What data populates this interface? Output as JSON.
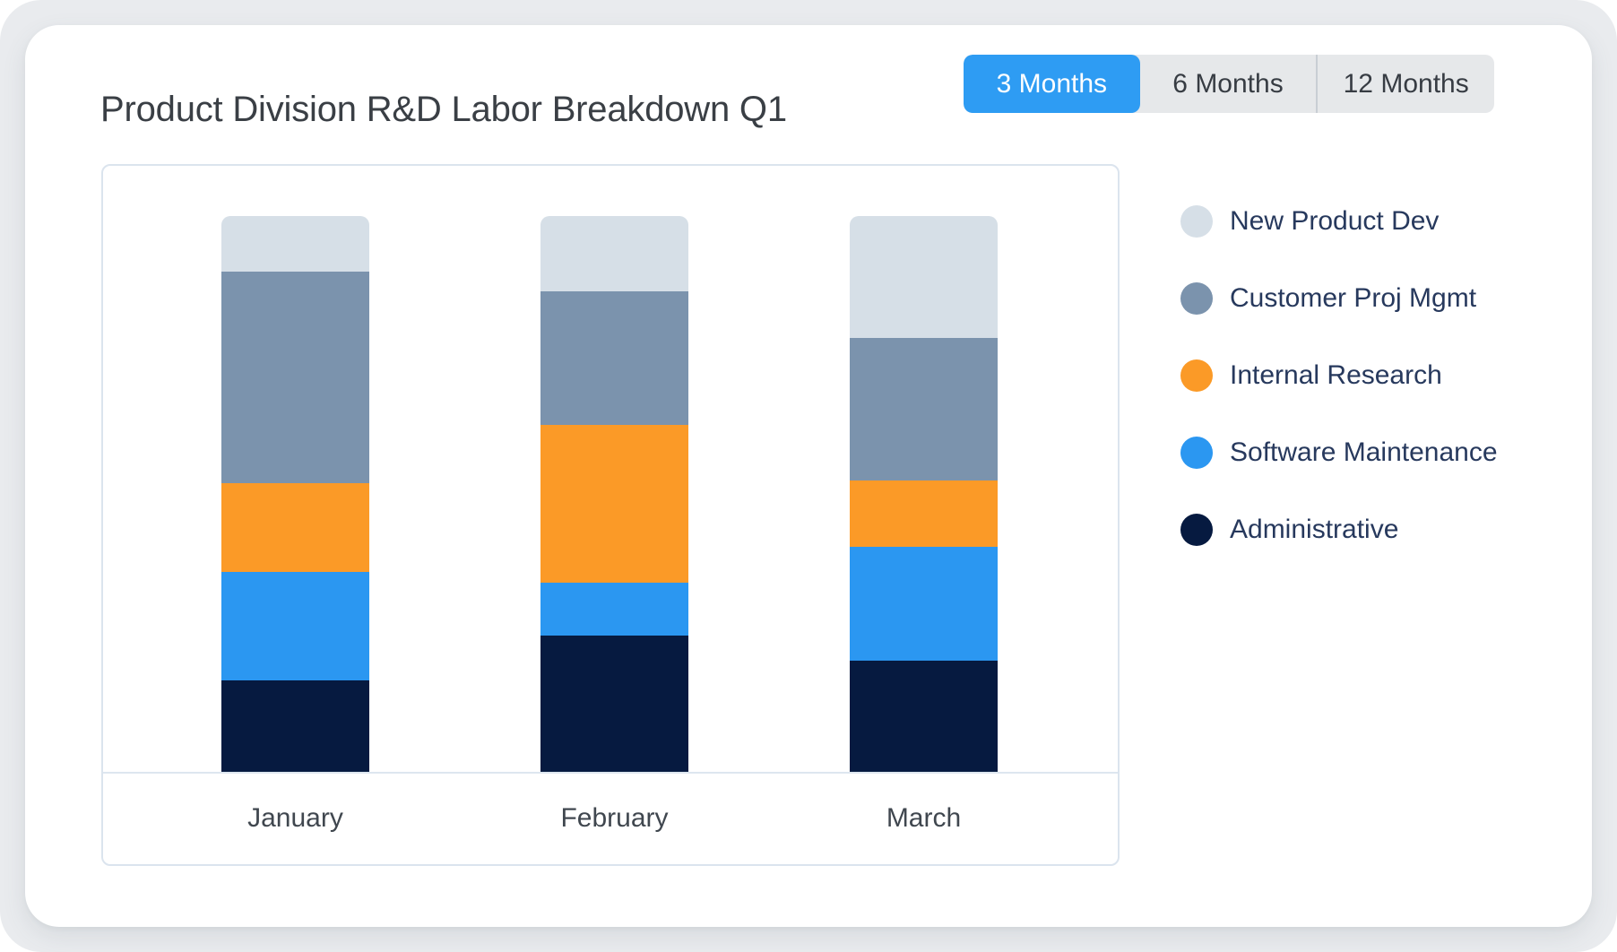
{
  "header": {
    "title": "Product Division R&D Labor Breakdown Q1",
    "tabs": [
      {
        "label": "3 Months",
        "active": true
      },
      {
        "label": "6 Months",
        "active": false
      },
      {
        "label": "12 Months",
        "active": false
      }
    ]
  },
  "colors": {
    "accent_blue": "#2e9cf3",
    "tab_bar_bg": "#e6e8ea",
    "panel_border": "#dbe4ee",
    "axis_line": "#dde6ef",
    "page_bg": "#e9ebee",
    "card_bg": "#ffffff",
    "title_text": "#3a3f45",
    "legend_text": "#27395d",
    "month_label_text": "#40474f"
  },
  "chart_data": {
    "type": "bar",
    "stacked": true,
    "title": "Product Division R&D Labor Breakdown Q1",
    "categories": [
      "January",
      "February",
      "March"
    ],
    "series": [
      {
        "name": "New Product Dev",
        "color": "#d6dfe7",
        "values": [
          10,
          13.5,
          22
        ]
      },
      {
        "name": "Customer Proj Mgmt",
        "color": "#7b93ad",
        "values": [
          38,
          24,
          25.5
        ]
      },
      {
        "name": "Internal Research",
        "color": "#fb9a27",
        "values": [
          16,
          28.5,
          12
        ]
      },
      {
        "name": "Software Maintenance",
        "color": "#2b97f1",
        "values": [
          19.5,
          9.5,
          20.5
        ]
      },
      {
        "name": "Administrative",
        "color": "#061a40",
        "values": [
          16.5,
          24.5,
          20
        ]
      }
    ],
    "value_unit": "% share of monthly labor (estimated from bar heights; no value axis shown)",
    "ylim": [
      0,
      100
    ],
    "grid": false,
    "legend_position": "right",
    "xlabel": "",
    "ylabel": ""
  }
}
